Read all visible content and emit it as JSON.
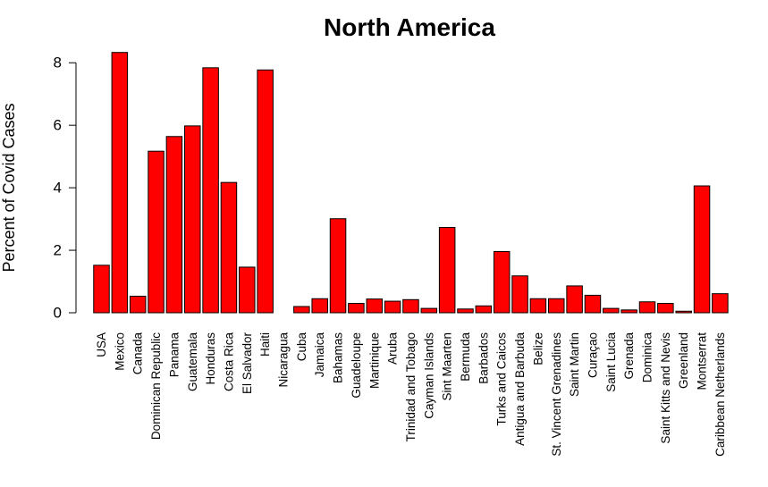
{
  "chart_data": {
    "type": "bar",
    "title": "North America",
    "xlabel": "",
    "ylabel": "Percent of Covid Cases",
    "ylim": [
      0,
      8.35
    ],
    "yticks": [
      0,
      2,
      4,
      6,
      8
    ],
    "bar_color": "#ff0000",
    "grid": false,
    "legend": "none",
    "categories": [
      "USA",
      "Mexico",
      "Canada",
      "Dominican Republic",
      "Panama",
      "Guatemala",
      "Honduras",
      "Costa Rica",
      "El Salvador",
      "Haiti",
      "Nicaragua",
      "Cuba",
      "Jamaica",
      "Bahamas",
      "Guadeloupe",
      "Martinique",
      "Aruba",
      "Trinidad and Tobago",
      "Cayman Islands",
      "Sint Maarten",
      "Bermuda",
      "Barbados",
      "Turks and Caicos",
      "Antigua and Barbuda",
      "Belize",
      "St. Vincent Grenadines",
      "Saint Martin",
      "Curaçao",
      "Saint Lucia",
      "Grenada",
      "Dominica",
      "Saint Kitts and Nevis",
      "Greenland",
      "Montserrat",
      "Caribbean Netherlands"
    ],
    "values": [
      1.52,
      8.33,
      0.53,
      5.17,
      5.64,
      5.98,
      7.84,
      4.17,
      1.46,
      7.77,
      0.0,
      0.2,
      0.45,
      3.01,
      0.3,
      0.44,
      0.37,
      0.42,
      0.14,
      2.73,
      0.12,
      0.22,
      1.96,
      1.18,
      0.45,
      0.45,
      0.86,
      0.56,
      0.14,
      0.09,
      0.35,
      0.3,
      0.05,
      4.06,
      0.61
    ]
  }
}
